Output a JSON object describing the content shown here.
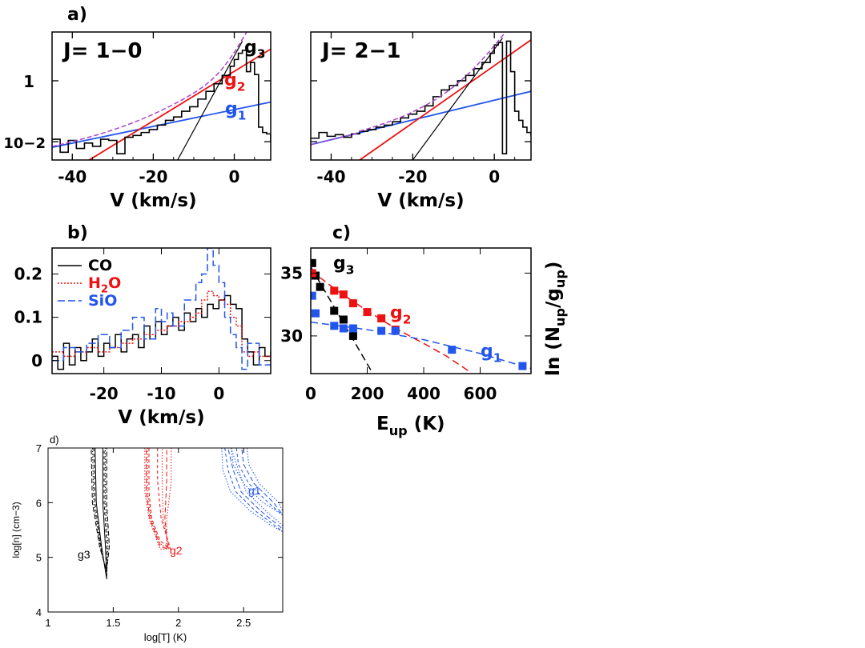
{
  "colors": {
    "co": "#000000",
    "h2o": "#ee1111",
    "sio": "#2255ee",
    "fit_total": "#aa44cc"
  },
  "chart_data": [
    {
      "panel": "a)",
      "type": "line",
      "annotation": "J= 1−0",
      "xlabel": "V (km/s)",
      "xlim": [
        -45,
        9
      ],
      "yscale": "log",
      "ylim": [
        0.0025,
        40
      ],
      "xticks": [
        "-40",
        "-20",
        "0"
      ],
      "yticks": [
        "1",
        "10−2"
      ],
      "series": [
        {
          "name": "g1",
          "label": "g",
          "sub": "1",
          "color": "#2255ee",
          "x": [
            -45,
            9
          ],
          "y": [
            0.0065,
            0.2
          ]
        },
        {
          "name": "g2",
          "label": "g",
          "sub": "2",
          "color": "#ee1111",
          "x": [
            -45,
            9
          ],
          "y": [
            0.00045,
            11
          ]
        },
        {
          "name": "g3",
          "label": "g",
          "sub": "3",
          "color": "#000000",
          "x": [
            -14,
            2
          ],
          "y": [
            0.0025,
            20
          ]
        },
        {
          "name": "spectrum",
          "type": "step",
          "color": "#000000",
          "x": [
            -45,
            -43,
            -41,
            -39,
            -37,
            -35,
            -33,
            -31,
            -29,
            -27,
            -25,
            -23,
            -21,
            -19,
            -17,
            -15,
            -13,
            -11,
            -9,
            -7,
            -5,
            -3,
            -1,
            0,
            1,
            2,
            3,
            4,
            5,
            6,
            7,
            8,
            9
          ],
          "y": [
            0.012,
            0.0045,
            0.011,
            0.006,
            0.009,
            0.007,
            0.012,
            0.011,
            0.004,
            0.014,
            0.016,
            0.02,
            0.025,
            0.035,
            0.05,
            0.065,
            0.1,
            0.14,
            0.25,
            0.45,
            0.8,
            1.5,
            3,
            5,
            8,
            10,
            2,
            4,
            1.6,
            0.03,
            0.02,
            0.018,
            0.01
          ]
        }
      ]
    },
    {
      "panel": "",
      "type": "line",
      "annotation": "J= 2−1",
      "xlabel": "V (km/s)",
      "xlim": [
        -45,
        9
      ],
      "yscale": "log",
      "ylim": [
        0.0025,
        40
      ],
      "xticks": [
        "-40",
        "-20",
        "0"
      ],
      "yticks": [],
      "series": [
        {
          "name": "g1",
          "color": "#2255ee",
          "x": [
            -45,
            9
          ],
          "y": [
            0.008,
            0.45
          ]
        },
        {
          "name": "g2",
          "color": "#ee1111",
          "x": [
            -33,
            9
          ],
          "y": [
            0.0025,
            22
          ]
        },
        {
          "name": "g3",
          "color": "#000000",
          "x": [
            -20,
            2
          ],
          "y": [
            0.0025,
            25
          ]
        },
        {
          "name": "spectrum",
          "type": "step",
          "color": "#000000",
          "x": [
            -45,
            -43,
            -41,
            -39,
            -37,
            -35,
            -33,
            -31,
            -29,
            -27,
            -25,
            -23,
            -21,
            -19,
            -17,
            -15,
            -13,
            -11,
            -9,
            -7,
            -5,
            -3,
            -1,
            0,
            1,
            2,
            3,
            4,
            5,
            6,
            7,
            8,
            9
          ],
          "y": [
            0.013,
            0.02,
            0.015,
            0.017,
            0.014,
            0.018,
            0.022,
            0.025,
            0.03,
            0.035,
            0.045,
            0.06,
            0.08,
            0.1,
            0.15,
            0.3,
            0.5,
            0.7,
            1,
            1.5,
            2.5,
            4,
            8,
            15,
            18,
            0.004,
            20,
            2,
            0.1,
            0.05,
            0.03,
            0.02,
            0.015
          ]
        }
      ]
    },
    {
      "panel": "b)",
      "type": "line",
      "xlabel": "V (km/s)",
      "xlim": [
        -29,
        9
      ],
      "ylim": [
        -0.03,
        0.26
      ],
      "xticks": [
        "-20",
        "-10",
        "0"
      ],
      "yticks": [
        "0",
        "0.1",
        "0.2"
      ],
      "legend": [
        {
          "label": "CO",
          "color": "#000000",
          "dash": "solid"
        },
        {
          "label": "H",
          "sub": "2",
          "rest": "O",
          "color": "#ee1111",
          "dash": "dotted"
        },
        {
          "label": "SiO",
          "color": "#2255ee",
          "dash": "dashed"
        }
      ],
      "series": [
        {
          "name": "CO",
          "type": "step",
          "color": "#000000",
          "x": [
            -29,
            -28,
            -27,
            -26,
            -25,
            -24,
            -23,
            -22,
            -21,
            -20,
            -19,
            -18,
            -17,
            -16,
            -15,
            -14,
            -13,
            -12,
            -11,
            -10,
            -9,
            -8,
            -7,
            -6,
            -5,
            -4,
            -3,
            -2,
            -1,
            0,
            1,
            2,
            3,
            4,
            5,
            6,
            7,
            8,
            9
          ],
          "y": [
            0.01,
            -0.02,
            0.04,
            -0.01,
            0.03,
            0.0,
            0.02,
            0.05,
            0.01,
            0.04,
            0.03,
            0.06,
            0.02,
            0.05,
            0.06,
            0.03,
            0.08,
            0.05,
            0.09,
            0.06,
            0.08,
            0.1,
            0.07,
            0.11,
            0.09,
            0.12,
            0.1,
            0.13,
            0.12,
            0.14,
            0.15,
            0.13,
            0.12,
            0.05,
            0.02,
            -0.01,
            0.03,
            0.01,
            0.02
          ]
        },
        {
          "name": "H2O",
          "type": "step",
          "color": "#ee1111",
          "x": [
            -29,
            -27,
            -25,
            -23,
            -21,
            -19,
            -17,
            -15,
            -13,
            -11,
            -9,
            -7,
            -5,
            -4,
            -3,
            -2,
            -1,
            0,
            1,
            2,
            3,
            4,
            5,
            6,
            7,
            9
          ],
          "y": [
            0.02,
            0.01,
            0.02,
            0.03,
            0.02,
            0.03,
            0.04,
            0.05,
            0.06,
            0.07,
            0.08,
            0.09,
            0.1,
            0.11,
            0.14,
            0.16,
            0.15,
            0.14,
            0.13,
            0.1,
            0.08,
            0.02,
            0.01,
            0.02,
            0.01,
            0.02
          ]
        },
        {
          "name": "SiO",
          "type": "step",
          "color": "#2255ee",
          "x": [
            -29,
            -27,
            -25,
            -23,
            -21,
            -19,
            -17,
            -15,
            -13,
            -11,
            -10,
            -9,
            -8,
            -6,
            -4,
            -3,
            -2,
            -1,
            0,
            1,
            2,
            3,
            4,
            5,
            7,
            9
          ],
          "y": [
            0.0,
            0.03,
            0.02,
            0.04,
            0.06,
            0.03,
            0.07,
            0.1,
            0.05,
            0.12,
            0.09,
            0.11,
            0.08,
            0.14,
            0.18,
            0.2,
            0.26,
            0.22,
            0.18,
            0.1,
            0.06,
            0.03,
            -0.02,
            0.04,
            -0.01,
            0.02
          ]
        }
      ]
    },
    {
      "panel": "c)",
      "type": "scatter",
      "xlabel": "E",
      "xlabel_sub": "up",
      "xlabel_rest": " (K)",
      "ylabel": "ln (N",
      "ylabel_sub1": "up",
      "ylabel_mid": "/g",
      "ylabel_sub2": "up",
      "ylabel_rest": ")",
      "xlim": [
        0,
        780
      ],
      "ylim": [
        27,
        37
      ],
      "xticks": [
        "0",
        "200",
        "400",
        "600"
      ],
      "yticks": [
        "30",
        "35"
      ],
      "series": [
        {
          "name": "g3",
          "label": "g",
          "sub": "3",
          "color": "#000000",
          "x": [
            5,
            17,
            33,
            83,
            116,
            150
          ],
          "y": [
            35.8,
            34.8,
            33.9,
            32,
            31.3,
            30
          ],
          "fit_x": [
            0,
            220
          ],
          "fit_y": [
            35.5,
            27
          ]
        },
        {
          "name": "g2",
          "label": "g",
          "sub": "2",
          "color": "#ee1111",
          "x": [
            5,
            83,
            116,
            150,
            200,
            250,
            300
          ],
          "y": [
            35,
            33.6,
            33.3,
            32.6,
            31.9,
            31.4,
            30.5
          ],
          "fit_x": [
            0,
            100,
            200,
            300,
            400,
            480,
            560
          ],
          "fit_y": [
            35.2,
            33.5,
            32,
            30.6,
            29.4,
            28.4,
            27.2
          ]
        },
        {
          "name": "g1",
          "label": "g",
          "sub": "1",
          "color": "#2255ee",
          "x": [
            5,
            17,
            83,
            116,
            150,
            250,
            300,
            500,
            750
          ],
          "y": [
            33.2,
            31.8,
            30.8,
            30.6,
            30.6,
            30.4,
            30.4,
            28.9,
            27.6
          ],
          "fit_x": [
            0,
            200,
            400,
            600,
            780
          ],
          "fit_y": [
            31.1,
            30.5,
            29.7,
            28.6,
            27.4
          ]
        }
      ]
    },
    {
      "panel": "d)",
      "type": "line",
      "xlabel": "log[T] (K)",
      "ylabel": "log[n] (cm−3)",
      "xlim": [
        1,
        2.8
      ],
      "ylim": [
        4,
        7
      ],
      "xticks": [
        "1",
        "1.5",
        "2",
        "2.5"
      ],
      "yticks": [
        "4",
        "5",
        "6",
        "7"
      ],
      "series": [
        {
          "name": "g3",
          "color": "#000000",
          "label": "g3"
        },
        {
          "name": "g2",
          "color": "#ee1111",
          "label": "g2"
        },
        {
          "name": "g1",
          "color": "#2255ee",
          "label": "g1"
        }
      ]
    }
  ]
}
